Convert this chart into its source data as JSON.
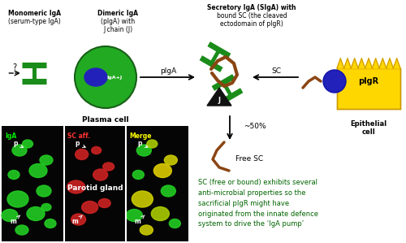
{
  "bg_color": "#ffffff",
  "green_color": "#1a8c1a",
  "dark_green": "#006400",
  "brown_color": "#8B4513",
  "yellow_color": "#FFD700",
  "text_color_green": "#006400",
  "text_color_black": "#000000",
  "texts": {
    "mono_label1": "Monomeric IgA",
    "mono_label2": "(serum-type IgA)",
    "dimeric_label1": "Dimeric IgA",
    "dimeric_label2": "(pIgA) with",
    "dimeric_label3": "J chain (J)",
    "secretory_label1": "Secretory IgA (SIgA) with",
    "secretory_label2": "bound SC (the cleaved",
    "secretory_label3": "ectodomain of pIgR)",
    "plasma_cell": "Plasma cell",
    "epithelial_cell": "Epithelial\ncell",
    "pIgA_arrow": "pIgA",
    "SC_arrow": "SC",
    "J_label": "J",
    "pIgR_label": "pIgR",
    "free_sc_pct": "~50%",
    "free_sc": "Free SC",
    "parotid": "Parotid gland",
    "IgA_label": "IgA",
    "SC_aff_label": "SC aff.",
    "merge_label": "Merge",
    "bottom_text": "SC (free or bound) exhibits several\nanti-microbial properties so the\nsacrificial pIgR might have\noriginated from the innate defence\nsystem to drive the ‘IgA pump’"
  }
}
